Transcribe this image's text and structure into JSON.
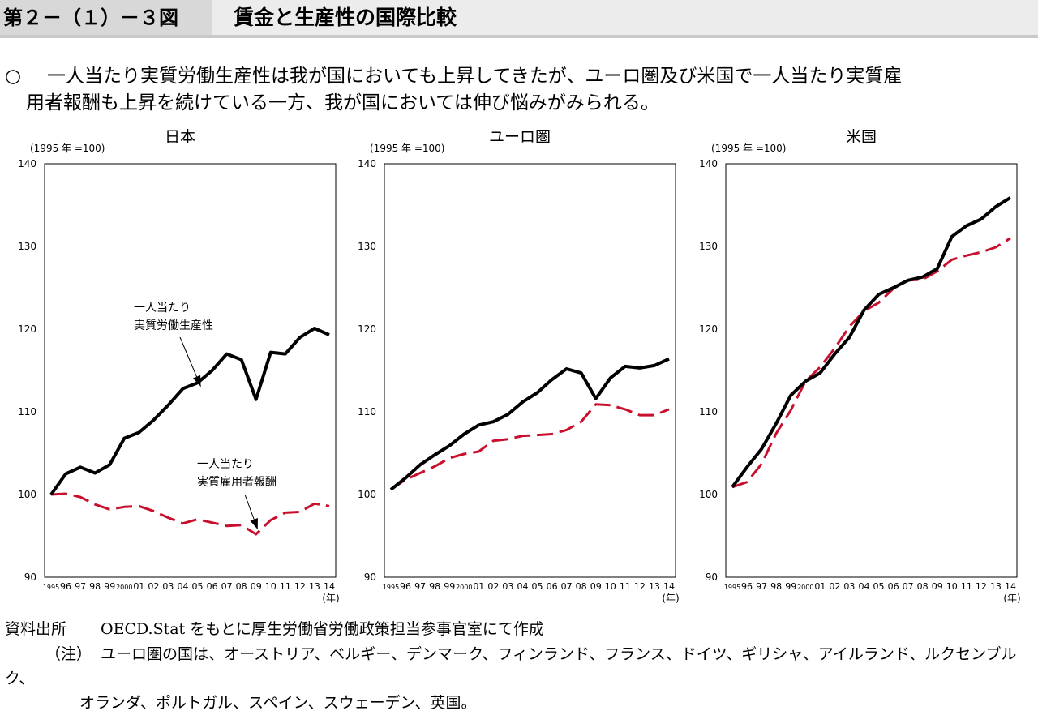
{
  "header": {
    "figure_label": "第２－（１）－３図",
    "title": "賃金と生産性の国際比較"
  },
  "summary": {
    "bullet": "○",
    "line1": "一人当たり実質労働生産性は我が国においても上昇してきたが、ユーロ圏及び米国で一人当たり実質雇",
    "line2": "用者報酬も上昇を続けている一方、我が国においては伸び悩みがみられる。"
  },
  "footer": {
    "source_label": "資料出所",
    "source_text": "OECD.Stat をもとに厚生労働省労働政策担当参事官室にて作成",
    "note_label": "（注）",
    "note_text_1": "ユーロ圏の国は、オーストリア、ベルギー、デンマーク、フィンランド、フランス、ドイツ、ギリシャ、アイルランド、ルクセンブルク、",
    "note_text_2": "オランダ、ポルトガル、スペイン、スウェーデン、英国。"
  },
  "colors": {
    "productivity": "#000000",
    "compensation": "#c8102e"
  },
  "chart_data": [
    {
      "type": "line",
      "title": "日本",
      "unit_label": "(1995 年 =100)",
      "x_unit": "(年)",
      "x": [
        "1995",
        "96",
        "97",
        "98",
        "99",
        "2000",
        "01",
        "02",
        "03",
        "04",
        "05",
        "06",
        "07",
        "08",
        "09",
        "10",
        "11",
        "12",
        "13",
        "14"
      ],
      "ylim": [
        90,
        140
      ],
      "yticks": [
        90,
        100,
        110,
        120,
        130,
        140
      ],
      "grid": false,
      "series": [
        {
          "name": "一人当たり実質労働生産性",
          "style": "solid",
          "values": [
            100.0,
            102.5,
            103.3,
            102.6,
            103.6,
            106.8,
            107.5,
            109.0,
            110.8,
            112.8,
            113.5,
            115.0,
            117.0,
            116.3,
            111.5,
            117.2,
            117.0,
            119.0,
            120.1,
            119.3
          ]
        },
        {
          "name": "一人当たり実質雇用者報酬",
          "style": "dashed",
          "values": [
            100.0,
            100.1,
            99.7,
            98.8,
            98.2,
            98.5,
            98.6,
            98.0,
            97.2,
            96.5,
            97.0,
            96.6,
            96.2,
            96.3,
            95.2,
            96.9,
            97.8,
            97.9,
            98.9,
            98.6
          ]
        }
      ],
      "annotations": [
        {
          "text": [
            "一人当たり",
            "実質労働生産性"
          ],
          "target_series": 0
        },
        {
          "text": [
            "一人当たり",
            "実質雇用者報酬"
          ],
          "target_series": 1
        }
      ]
    },
    {
      "type": "line",
      "title": "ユーロ圏",
      "unit_label": "(1995 年 =100)",
      "x_unit": "(年)",
      "x": [
        "1995",
        "96",
        "97",
        "98",
        "99",
        "2000",
        "01",
        "02",
        "03",
        "04",
        "05",
        "06",
        "07",
        "08",
        "09",
        "10",
        "11",
        "12",
        "13",
        "14"
      ],
      "ylim": [
        90,
        140
      ],
      "yticks": [
        90,
        100,
        110,
        120,
        130,
        140
      ],
      "grid": false,
      "series": [
        {
          "name": "一人当たり実質労働生産性",
          "style": "solid",
          "values": [
            100.6,
            102.0,
            103.6,
            104.8,
            105.9,
            107.3,
            108.4,
            108.8,
            109.7,
            111.2,
            112.3,
            113.9,
            115.2,
            114.7,
            111.6,
            114.1,
            115.5,
            115.3,
            115.6,
            116.4
          ]
        },
        {
          "name": "一人当たり実質雇用者報酬",
          "style": "dashed",
          "values": [
            100.6,
            101.8,
            102.6,
            103.4,
            104.4,
            104.9,
            105.2,
            106.5,
            106.7,
            107.1,
            107.2,
            107.3,
            107.8,
            108.8,
            110.9,
            110.8,
            110.3,
            109.6,
            109.6,
            110.3
          ]
        }
      ]
    },
    {
      "type": "line",
      "title": "米国",
      "unit_label": "(1995 年 =100)",
      "x_unit": "(年)",
      "x": [
        "1995",
        "96",
        "97",
        "98",
        "99",
        "2000",
        "01",
        "02",
        "03",
        "04",
        "05",
        "06",
        "07",
        "08",
        "09",
        "10",
        "11",
        "12",
        "13",
        "14"
      ],
      "ylim": [
        90,
        140
      ],
      "yticks": [
        90,
        100,
        110,
        120,
        130,
        140
      ],
      "grid": false,
      "series": [
        {
          "name": "一人当たり実質労働生産性",
          "style": "solid",
          "values": [
            100.9,
            103.3,
            105.5,
            108.6,
            112.0,
            113.7,
            114.7,
            117.0,
            119.0,
            122.3,
            124.2,
            125.0,
            125.9,
            126.3,
            127.3,
            131.2,
            132.5,
            133.3,
            134.8,
            135.9
          ]
        },
        {
          "name": "一人当たり実質雇用者報酬",
          "style": "dashed",
          "values": [
            100.9,
            101.5,
            103.7,
            107.4,
            110.2,
            113.7,
            115.4,
            117.7,
            120.3,
            122.2,
            123.2,
            124.9,
            125.9,
            126.0,
            127.0,
            128.4,
            128.9,
            129.3,
            129.9,
            131.0
          ]
        }
      ]
    }
  ]
}
